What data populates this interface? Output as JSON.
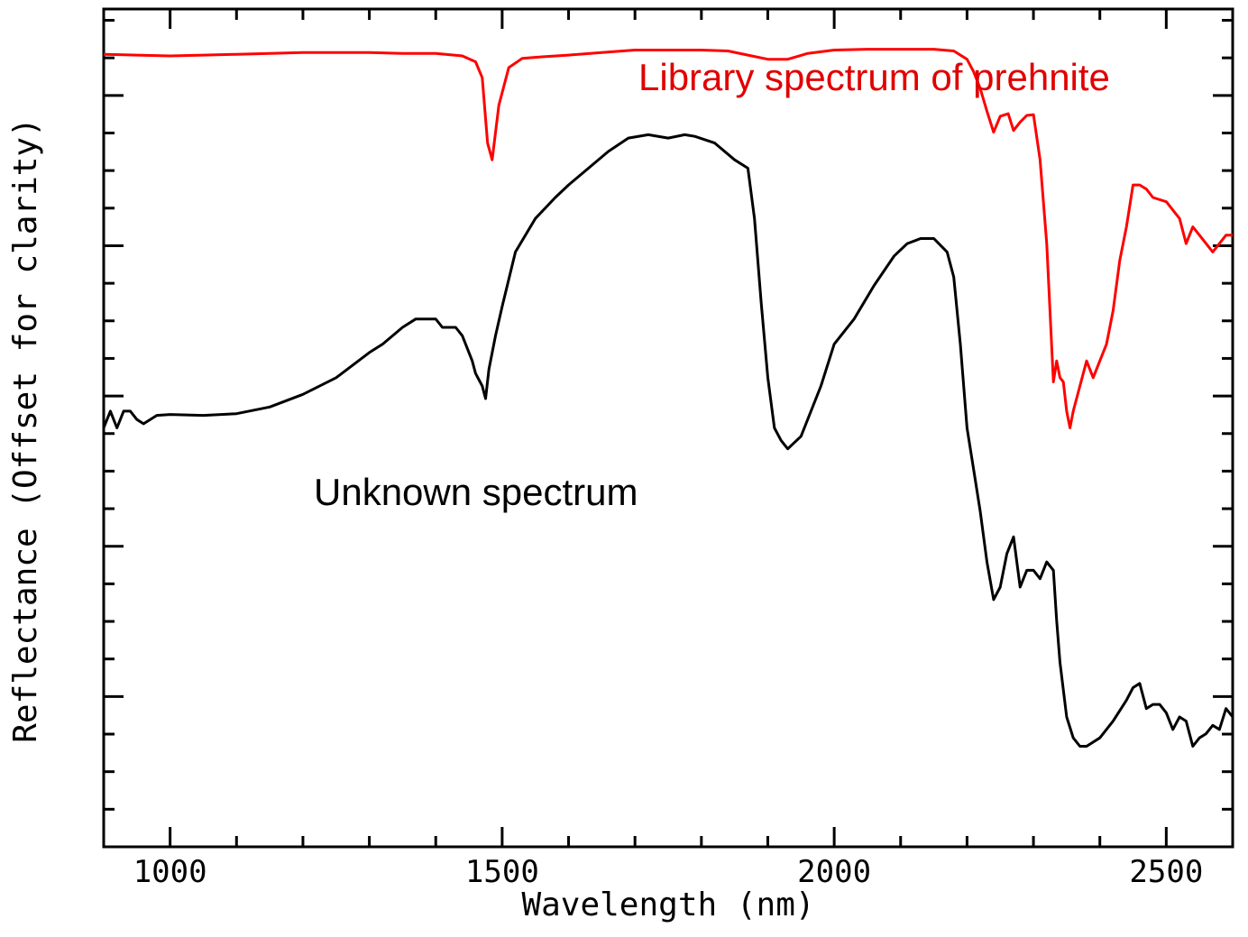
{
  "chart_data": {
    "type": "line",
    "xlabel": "Wavelength (nm)",
    "ylabel": "Reflectance (Offset for clarity)",
    "xlim": [
      900,
      2600
    ],
    "ylim": [
      0,
      1
    ],
    "x_ticks": [
      1000,
      1500,
      2000,
      2500
    ],
    "y_tick_labels_shown": false,
    "grid": false,
    "annotations": [
      {
        "text": "Library spectrum of prehnite",
        "color": "#e00000"
      },
      {
        "text": "Unknown spectrum",
        "color": "#000000"
      }
    ],
    "series": [
      {
        "name": "Library spectrum of prehnite",
        "color": "#ff0000",
        "x": [
          900,
          950,
          1000,
          1050,
          1100,
          1150,
          1200,
          1250,
          1300,
          1350,
          1400,
          1440,
          1460,
          1470,
          1478,
          1485,
          1495,
          1510,
          1530,
          1560,
          1600,
          1650,
          1700,
          1750,
          1800,
          1840,
          1870,
          1900,
          1930,
          1960,
          2000,
          2050,
          2100,
          2150,
          2180,
          2200,
          2210,
          2220,
          2230,
          2240,
          2250,
          2262,
          2270,
          2280,
          2290,
          2300,
          2310,
          2320,
          2330,
          2335,
          2340,
          2345,
          2350,
          2355,
          2360,
          2370,
          2380,
          2390,
          2400,
          2410,
          2420,
          2430,
          2440,
          2450,
          2460,
          2470,
          2480,
          2500,
          2520,
          2530,
          2540,
          2550,
          2560,
          2570,
          2580,
          2590,
          2600
        ],
        "y": [
          0.946,
          0.945,
          0.944,
          0.945,
          0.946,
          0.947,
          0.948,
          0.948,
          0.948,
          0.947,
          0.947,
          0.944,
          0.937,
          0.918,
          0.84,
          0.82,
          0.885,
          0.93,
          0.941,
          0.943,
          0.945,
          0.948,
          0.951,
          0.951,
          0.951,
          0.95,
          0.945,
          0.94,
          0.94,
          0.947,
          0.951,
          0.952,
          0.952,
          0.952,
          0.95,
          0.94,
          0.925,
          0.905,
          0.878,
          0.853,
          0.872,
          0.875,
          0.855,
          0.865,
          0.873,
          0.874,
          0.82,
          0.72,
          0.555,
          0.58,
          0.56,
          0.555,
          0.52,
          0.5,
          0.52,
          0.55,
          0.58,
          0.56,
          0.58,
          0.6,
          0.64,
          0.7,
          0.74,
          0.79,
          0.79,
          0.785,
          0.775,
          0.77,
          0.75,
          0.72,
          0.74,
          0.73,
          0.72,
          0.71,
          0.72,
          0.73,
          0.73
        ]
      },
      {
        "name": "Unknown spectrum",
        "color": "#000000",
        "x": [
          900,
          910,
          920,
          930,
          940,
          950,
          960,
          980,
          1000,
          1050,
          1100,
          1150,
          1200,
          1250,
          1300,
          1320,
          1350,
          1370,
          1380,
          1390,
          1400,
          1410,
          1420,
          1430,
          1440,
          1455,
          1460,
          1470,
          1475,
          1480,
          1490,
          1500,
          1520,
          1550,
          1580,
          1600,
          1630,
          1660,
          1690,
          1720,
          1750,
          1775,
          1790,
          1820,
          1850,
          1870,
          1880,
          1890,
          1900,
          1910,
          1920,
          1930,
          1950,
          1980,
          2000,
          2030,
          2060,
          2090,
          2110,
          2130,
          2150,
          2170,
          2180,
          2190,
          2200,
          2210,
          2220,
          2230,
          2240,
          2250,
          2260,
          2270,
          2280,
          2290,
          2300,
          2310,
          2320,
          2330,
          2335,
          2340,
          2350,
          2360,
          2370,
          2380,
          2400,
          2420,
          2440,
          2450,
          2460,
          2470,
          2480,
          2490,
          2500,
          2510,
          2520,
          2530,
          2540,
          2550,
          2560,
          2570,
          2580,
          2590,
          2600
        ],
        "y": [
          0.5,
          0.52,
          0.5,
          0.52,
          0.52,
          0.51,
          0.505,
          0.515,
          0.516,
          0.515,
          0.517,
          0.525,
          0.54,
          0.56,
          0.59,
          0.6,
          0.62,
          0.63,
          0.63,
          0.63,
          0.63,
          0.62,
          0.62,
          0.62,
          0.61,
          0.58,
          0.565,
          0.55,
          0.535,
          0.57,
          0.61,
          0.645,
          0.71,
          0.75,
          0.775,
          0.79,
          0.81,
          0.83,
          0.846,
          0.85,
          0.846,
          0.85,
          0.848,
          0.84,
          0.82,
          0.81,
          0.75,
          0.65,
          0.56,
          0.5,
          0.485,
          0.475,
          0.49,
          0.55,
          0.6,
          0.63,
          0.67,
          0.705,
          0.72,
          0.726,
          0.726,
          0.71,
          0.68,
          0.6,
          0.5,
          0.45,
          0.4,
          0.34,
          0.295,
          0.31,
          0.35,
          0.37,
          0.31,
          0.33,
          0.33,
          0.32,
          0.34,
          0.33,
          0.27,
          0.22,
          0.155,
          0.13,
          0.12,
          0.12,
          0.13,
          0.15,
          0.175,
          0.19,
          0.195,
          0.165,
          0.17,
          0.17,
          0.16,
          0.14,
          0.155,
          0.15,
          0.12,
          0.13,
          0.135,
          0.145,
          0.14,
          0.165,
          0.155
        ]
      }
    ]
  }
}
